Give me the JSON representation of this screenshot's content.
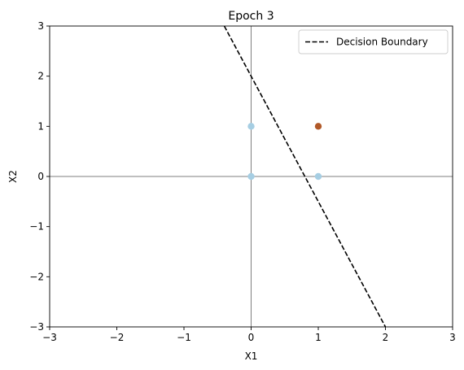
{
  "chart_data": {
    "type": "scatter",
    "title": "Epoch 3",
    "xlabel": "X1",
    "ylabel": "X2",
    "xlim": [
      -3,
      3
    ],
    "ylim": [
      -3,
      3
    ],
    "xticks": [
      -3,
      -2,
      -1,
      0,
      1,
      2,
      3
    ],
    "yticks": [
      -3,
      -2,
      -1,
      0,
      1,
      2,
      3
    ],
    "grid": false,
    "reference_lines": {
      "x": 0,
      "y": 0,
      "color": "#000000"
    },
    "points": [
      {
        "x": 0,
        "y": 0,
        "class": 0,
        "color": "#a6cee3"
      },
      {
        "x": 0,
        "y": 1,
        "class": 0,
        "color": "#a6cee3"
      },
      {
        "x": 1,
        "y": 0,
        "class": 0,
        "color": "#a6cee3"
      },
      {
        "x": 1,
        "y": 1,
        "class": 1,
        "color": "#b15928"
      }
    ],
    "series": [
      {
        "name": "Decision Boundary",
        "style": "dashed",
        "color": "#000000",
        "x": [
          -0.4,
          2.0
        ],
        "y": [
          3.0,
          -3.0
        ]
      }
    ],
    "legend_position": "top-right"
  }
}
